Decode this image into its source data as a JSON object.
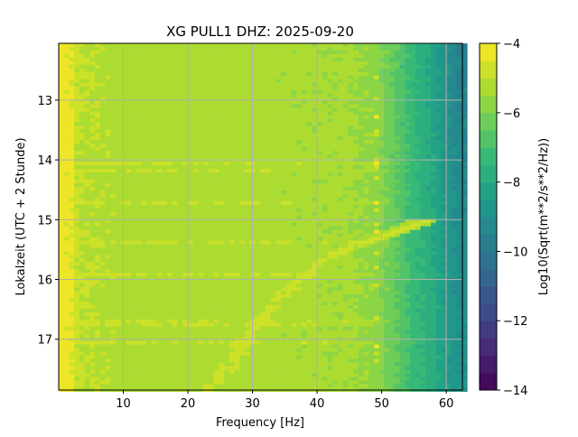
{
  "chart_data": {
    "type": "heatmap",
    "title": "XG PULL1  DHZ: 2025-09-20",
    "xlabel": "Frequency [Hz]",
    "ylabel": "Lokalzeit (UTC + 2 Stunde)",
    "xlim": [
      0,
      62.5
    ],
    "ylim": [
      17.85,
      12.05
    ],
    "xticks": [
      10,
      20,
      30,
      40,
      50,
      60
    ],
    "yticks": [
      13,
      14,
      15,
      16,
      17
    ],
    "grid": true,
    "colorbar": {
      "label": "Log10(Sqrt(m**2/s**2/Hz))",
      "range": [
        -14,
        -4
      ],
      "ticks": [
        -4,
        -6,
        -8,
        -10,
        -12,
        -14
      ],
      "tick_labels": [
        "−4",
        "−6",
        "−8",
        "−10",
        "−12",
        "−14"
      ],
      "levels": 20,
      "colormap": "viridis"
    },
    "background_profile": {
      "freq_hz": [
        0,
        2,
        3,
        10,
        30,
        45,
        49,
        52,
        55,
        58,
        60,
        62.5
      ],
      "log10_amplitude": [
        -4.3,
        -4.4,
        -5.0,
        -5.2,
        -5.3,
        -5.4,
        -5.7,
        -6.4,
        -7.2,
        -7.8,
        -8.4,
        -9.0
      ]
    },
    "chirp_feature": {
      "freq_hz": [
        23,
        27,
        31,
        35,
        40,
        46,
        52,
        56
      ],
      "time_h": [
        17.85,
        17.3,
        16.7,
        16.2,
        15.7,
        15.4,
        15.2,
        15.05
      ],
      "log10_amplitude": -4.8
    },
    "horizontal_streaks_h": [
      14.05,
      14.15,
      14.7,
      15.35,
      15.9,
      16.7,
      17.05
    ],
    "line_50hz": {
      "freq_hz": 49,
      "log10_amplitude": -4.6
    }
  }
}
